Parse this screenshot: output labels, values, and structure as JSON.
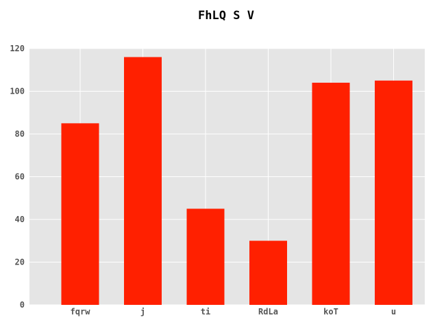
{
  "chart_data": {
    "type": "bar",
    "title": "FhLQ S V",
    "categories": [
      "fqrw",
      "j",
      "ti",
      "RdLa",
      "koT",
      "u"
    ],
    "values": [
      85,
      116,
      45,
      30,
      104,
      105
    ],
    "xlabel": "",
    "ylabel": "",
    "ylim": [
      0,
      120
    ],
    "yticks": [
      0,
      20,
      40,
      60,
      80,
      100,
      120
    ],
    "grid": true,
    "bar_color": "#ff2000",
    "background_color": "#e5e5e5",
    "grid_color": "#ffffff"
  }
}
